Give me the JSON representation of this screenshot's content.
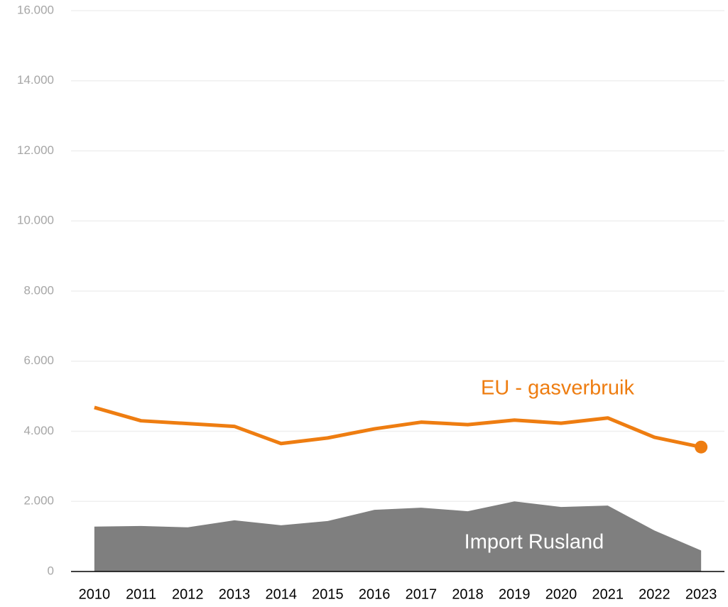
{
  "chart_data": {
    "type": "line",
    "categories": [
      "2010",
      "2011",
      "2012",
      "2013",
      "2014",
      "2015",
      "2016",
      "2017",
      "2018",
      "2019",
      "2020",
      "2021",
      "2022",
      "2023"
    ],
    "series": [
      {
        "name": "EU - gasverbruik",
        "color": "#ee7d11",
        "kind": "line",
        "end_marker": true,
        "values": [
          4680,
          4300,
          4220,
          4140,
          3650,
          3810,
          4070,
          4260,
          4190,
          4320,
          4230,
          4380,
          3830,
          3550
        ]
      },
      {
        "name": "Import Rusland",
        "color": "#7f7f7f",
        "kind": "area",
        "values": [
          1280,
          1300,
          1260,
          1460,
          1320,
          1440,
          1760,
          1820,
          1720,
          2000,
          1840,
          1880,
          1170,
          600
        ]
      }
    ],
    "ylim": [
      0,
      16000
    ],
    "yticks": [
      0,
      {
        "value": 2000,
        "label": "2.000"
      },
      {
        "value": 4000,
        "label": "4.000"
      },
      {
        "value": 6000,
        "label": "6.000"
      },
      {
        "value": 8000,
        "label": "8.000"
      },
      {
        "value": 10000,
        "label": "10.000"
      },
      {
        "value": 12000,
        "label": "12.000"
      },
      {
        "value": 14000,
        "label": "14.000"
      },
      {
        "value": 16000,
        "label": "16.000"
      }
    ],
    "grid": true
  }
}
